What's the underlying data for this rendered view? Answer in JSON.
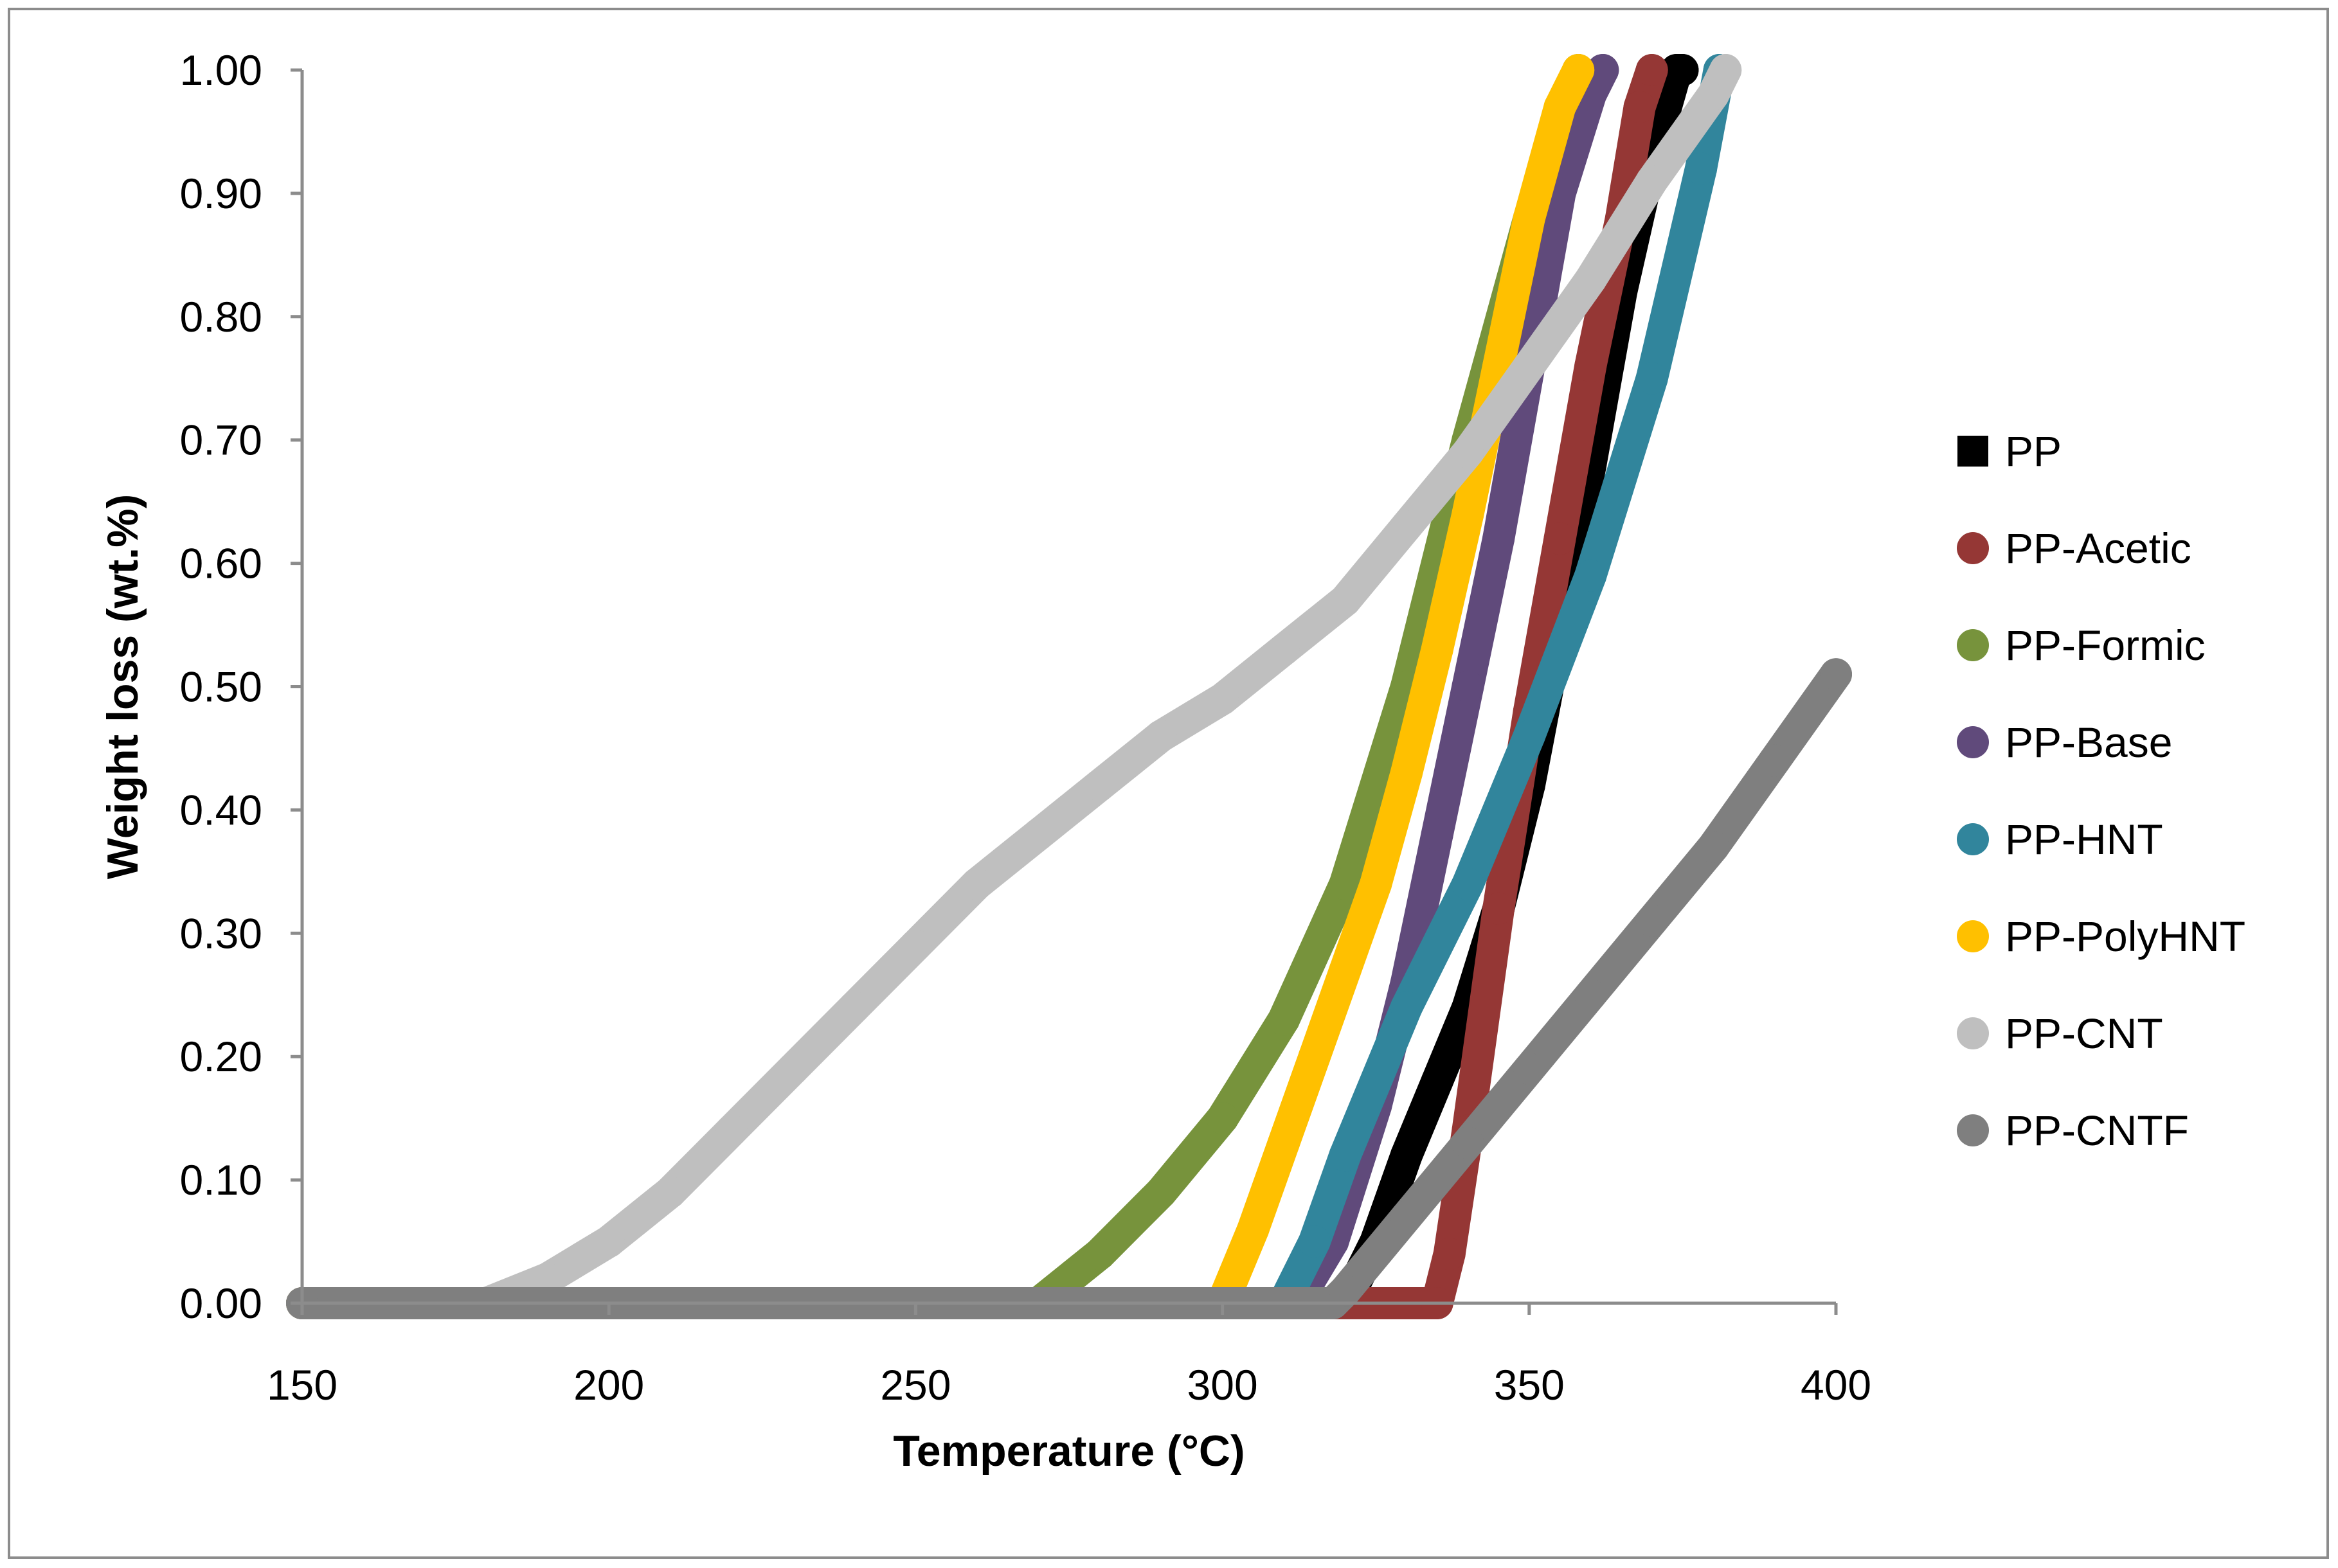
{
  "chart_data": {
    "type": "line",
    "title": "",
    "xlabel": "Temperature (°C)",
    "ylabel": "Weight loss (wt.%)",
    "xlim": [
      150,
      400
    ],
    "ylim": [
      0,
      1
    ],
    "x_ticks": [
      150,
      200,
      250,
      300,
      350,
      400
    ],
    "x_tick_labels": [
      "150",
      "200",
      "250",
      "300",
      "350",
      "400"
    ],
    "y_ticks": [
      0,
      0.1,
      0.2,
      0.3,
      0.4,
      0.5,
      0.6,
      0.7,
      0.8,
      0.9,
      1.0
    ],
    "y_tick_labels": [
      "0.00",
      "0.10",
      "0.20",
      "0.30",
      "0.40",
      "0.50",
      "0.60",
      "0.70",
      "0.80",
      "0.90",
      "1.00"
    ],
    "grid": false,
    "legend_position": "right",
    "series": [
      {
        "name": "PP",
        "color": "#000000",
        "marker": "square",
        "x": [
          150,
          320,
          325,
          330,
          335,
          340,
          345,
          350,
          355,
          360,
          365,
          370,
          374,
          375
        ],
        "y": [
          0,
          0,
          0.05,
          0.12,
          0.18,
          0.24,
          0.32,
          0.42,
          0.55,
          0.68,
          0.82,
          0.93,
          1.0,
          1.0
        ]
      },
      {
        "name": "PP-Acetic",
        "color": "#953735",
        "marker": "circle",
        "x": [
          150,
          320,
          335,
          337,
          340,
          345,
          350,
          355,
          360,
          365,
          368,
          370
        ],
        "y": [
          0,
          0,
          0,
          0.04,
          0.14,
          0.32,
          0.48,
          0.62,
          0.76,
          0.88,
          0.97,
          1.0
        ]
      },
      {
        "name": "PP-Formic",
        "color": "#77933c",
        "marker": "circle",
        "x": [
          150,
          270,
          280,
          290,
          300,
          310,
          320,
          330,
          340,
          350,
          355,
          358
        ],
        "y": [
          0,
          0,
          0.04,
          0.09,
          0.15,
          0.23,
          0.34,
          0.5,
          0.7,
          0.88,
          0.96,
          1.0
        ]
      },
      {
        "name": "PP-Base",
        "color": "#604a7b",
        "marker": "circle",
        "x": [
          150,
          312,
          318,
          325,
          330,
          335,
          340,
          345,
          350,
          355,
          360,
          362
        ],
        "y": [
          0,
          0,
          0.05,
          0.16,
          0.26,
          0.38,
          0.5,
          0.62,
          0.76,
          0.9,
          0.98,
          1.0
        ]
      },
      {
        "name": "PP-HNT",
        "color": "#31859c",
        "marker": "circle",
        "x": [
          150,
          310,
          315,
          320,
          330,
          340,
          350,
          360,
          370,
          378,
          381
        ],
        "y": [
          0,
          0,
          0.05,
          0.12,
          0.24,
          0.34,
          0.46,
          0.59,
          0.75,
          0.92,
          1.0
        ]
      },
      {
        "name": "PP-PolyHNT",
        "color": "#ffc000",
        "marker": "circle",
        "x": [
          150,
          300,
          305,
          310,
          315,
          320,
          325,
          330,
          335,
          340,
          345,
          350,
          355,
          358
        ],
        "y": [
          0,
          0,
          0.06,
          0.13,
          0.2,
          0.27,
          0.34,
          0.43,
          0.53,
          0.64,
          0.76,
          0.88,
          0.97,
          1.0
        ]
      },
      {
        "name": "PP-CNT",
        "color": "#bfbfbf",
        "marker": "circle",
        "x": [
          150,
          180,
          190,
          200,
          210,
          220,
          230,
          240,
          250,
          260,
          270,
          280,
          290,
          300,
          310,
          320,
          330,
          340,
          350,
          360,
          370,
          380,
          382
        ],
        "y": [
          0,
          0,
          0.02,
          0.05,
          0.09,
          0.14,
          0.19,
          0.24,
          0.29,
          0.34,
          0.38,
          0.42,
          0.46,
          0.49,
          0.53,
          0.57,
          0.63,
          0.69,
          0.76,
          0.83,
          0.91,
          0.98,
          1.0
        ]
      },
      {
        "name": "PP-CNTF",
        "color": "#7f7f7f",
        "marker": "circle",
        "x": [
          150,
          318,
          320,
          330,
          340,
          350,
          360,
          370,
          380,
          390,
          400
        ],
        "y": [
          0,
          0,
          0.01,
          0.07,
          0.13,
          0.19,
          0.25,
          0.31,
          0.37,
          0.44,
          0.51
        ]
      }
    ]
  }
}
